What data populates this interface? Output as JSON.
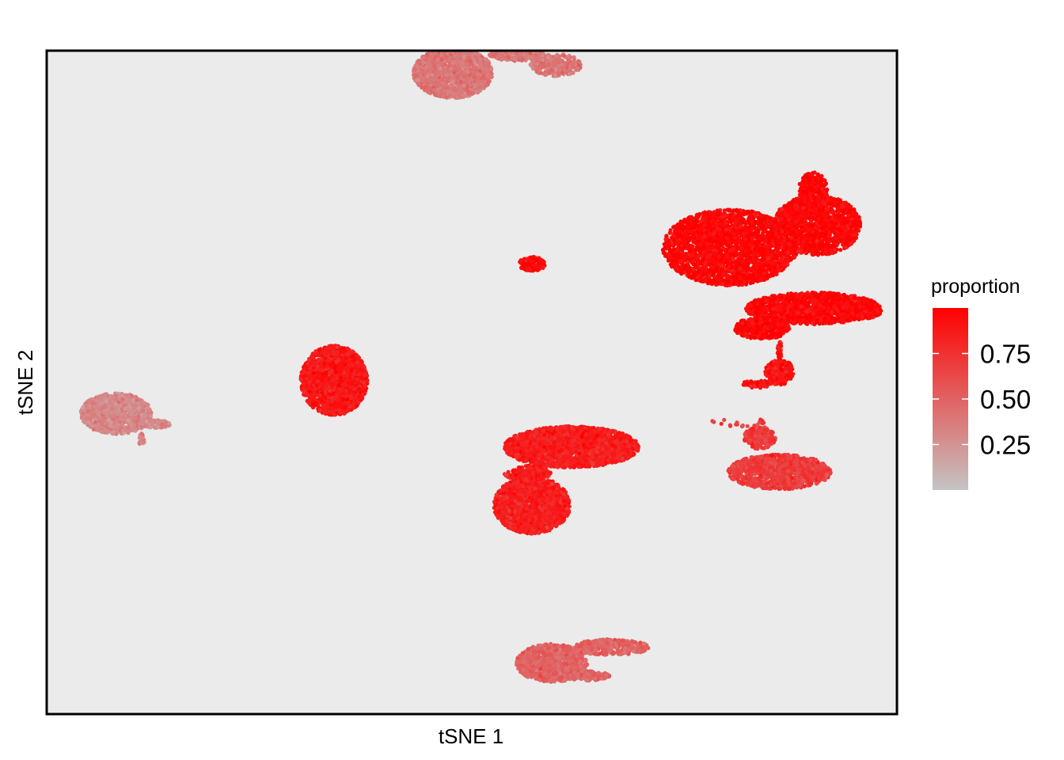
{
  "chart_data": {
    "type": "scatter",
    "title": "",
    "xlabel": "tSNE 1",
    "ylabel": "tSNE 2",
    "x_ticks_shown": false,
    "y_ticks_shown": false,
    "grid": false,
    "panel_background": "#ebebeb",
    "color_variable": "proportion",
    "color_scale": {
      "low_color": "#c4c4c4",
      "high_color": "#ff0000",
      "range": [
        0,
        1
      ],
      "breaks": [
        0.25,
        0.5,
        0.75
      ],
      "break_labels": [
        "0.25",
        "0.50",
        "0.75"
      ]
    },
    "legend_position": "right",
    "clusters": [
      {
        "id": "top-cluster",
        "center": [
          -2,
          36
        ],
        "mean_proportion": 0.4
      },
      {
        "id": "left-cluster",
        "center": [
          -36,
          -5
        ],
        "mean_proportion": 0.3
      },
      {
        "id": "mid-left-cluster",
        "center": [
          -14,
          -1
        ],
        "mean_proportion": 0.88
      },
      {
        "id": "small-center-cluster",
        "center": [
          6,
          13
        ],
        "mean_proportion": 0.97
      },
      {
        "id": "large-right-cluster",
        "center": [
          26,
          15
        ],
        "mean_proportion": 0.97
      },
      {
        "id": "small-right-cluster",
        "center": [
          31,
          0
        ],
        "mean_proportion": 0.9
      },
      {
        "id": "center-bar-cluster",
        "center": [
          10,
          -9
        ],
        "mean_proportion": 0.85
      },
      {
        "id": "center-round-cluster",
        "center": [
          6,
          -16
        ],
        "mean_proportion": 0.85
      },
      {
        "id": "far-right-cluster",
        "center": [
          31,
          -12
        ],
        "mean_proportion": 0.7
      },
      {
        "id": "bottom-cluster",
        "center": [
          8,
          -35
        ],
        "mean_proportion": 0.5
      }
    ]
  }
}
